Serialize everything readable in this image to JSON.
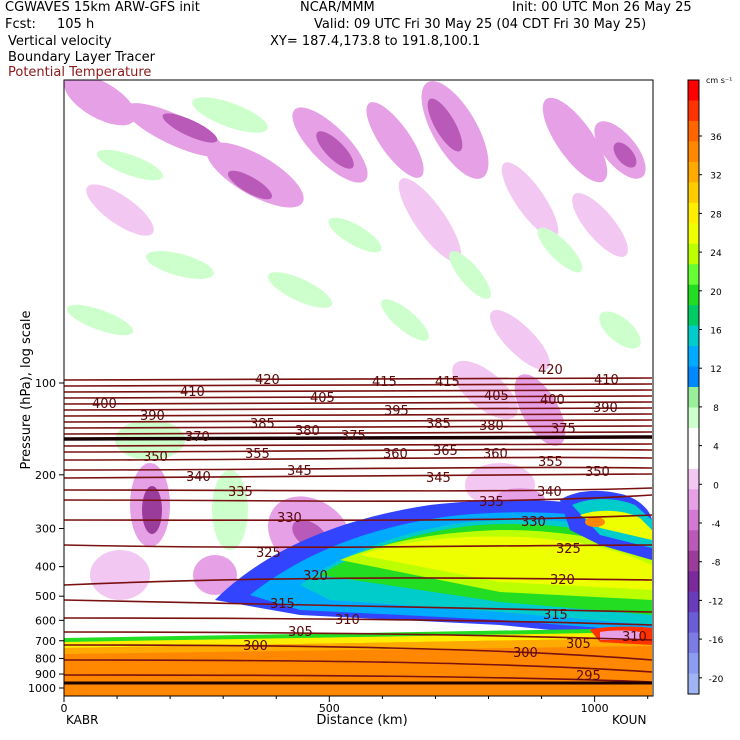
{
  "header": {
    "model": "CGWAVES 15km ARW-GFS init",
    "org": "NCAR/MMM",
    "init": "Init: 00 UTC Mon 26 May 25",
    "fcst_label": "Fcst:",
    "fcst_value": "105 h",
    "valid": "Valid: 09 UTC Fri 30 May 25 (04 CDT Fri 30 May 25)",
    "field1": "Vertical velocity",
    "field2": "Boundary Layer Tracer",
    "field3": "Potential Temperature",
    "xy": "XY= 187.4,173.8 to 191.8,100.1",
    "field3_color": "#8b1a1a"
  },
  "chart_data": {
    "type": "heatmap",
    "title": "",
    "xlabel": "Distance (km)",
    "ylabel": "Pressure (hPa), log scale",
    "x_ticks": [
      "0",
      "500",
      "1000"
    ],
    "x_tick_values": [
      0,
      500,
      1000
    ],
    "xlim": [
      0,
      1110
    ],
    "y_ticks": [
      "100",
      "200",
      "300",
      "400",
      "500",
      "600",
      "700",
      "800",
      "900",
      "1000"
    ],
    "y_tick_values": [
      100,
      200,
      300,
      400,
      500,
      600,
      700,
      800,
      900,
      1000
    ],
    "y_scale": "log",
    "endpoint_left": "KABR",
    "endpoint_right": "KOUN",
    "colorbar": {
      "unit": "cm s⁻¹",
      "labels": [
        "36",
        "32",
        "28",
        "24",
        "20",
        "16",
        "12",
        "8",
        "4",
        "0",
        "-4",
        "-8",
        "-12",
        "-16",
        "-20"
      ],
      "colors": [
        "#ff0000",
        "#ff3300",
        "#ff6600",
        "#ff8800",
        "#ffaa00",
        "#ffcc00",
        "#ffee00",
        "#eeff00",
        "#bbff00",
        "#66ff33",
        "#22dd22",
        "#00cc66",
        "#00cccc",
        "#00aaff",
        "#0088ff",
        "#99ee99",
        "#ccffcc",
        "#ffffff",
        "#ffffff",
        "#f2c8f2",
        "#e6a0e6",
        "#d27ad2",
        "#b95ab9",
        "#9a3c9a",
        "#7a2a9a",
        "#6a3cbb",
        "#6b5cd8",
        "#7c7ce6",
        "#8c9cf0",
        "#a0b4f4"
      ]
    },
    "potential_temperature": {
      "color": "#8b1a1a",
      "contour_labels": [
        "420",
        "415",
        "410",
        "405",
        "400",
        "395",
        "390",
        "385",
        "380",
        "375",
        "370",
        "365",
        "360",
        "355",
        "350",
        "345",
        "340",
        "335",
        "330",
        "325",
        "320",
        "315",
        "310",
        "305",
        "300",
        "295"
      ]
    },
    "grid": false,
    "legend": "right"
  }
}
